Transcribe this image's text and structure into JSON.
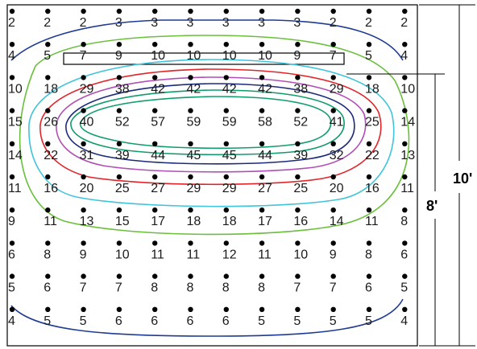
{
  "grid": {
    "rows": [
      [
        2,
        2,
        2,
        3,
        3,
        3,
        3,
        3,
        3,
        2,
        2,
        2
      ],
      [
        4,
        5,
        7,
        9,
        10,
        10,
        10,
        10,
        9,
        7,
        5,
        4
      ],
      [
        10,
        18,
        29,
        38,
        42,
        42,
        42,
        42,
        38,
        29,
        18,
        10
      ],
      [
        15,
        26,
        40,
        52,
        57,
        59,
        59,
        58,
        52,
        41,
        25,
        14
      ],
      [
        14,
        22,
        31,
        39,
        44,
        45,
        45,
        44,
        39,
        32,
        22,
        13
      ],
      [
        11,
        16,
        20,
        25,
        27,
        29,
        29,
        27,
        25,
        20,
        16,
        11
      ],
      [
        9,
        11,
        13,
        15,
        17,
        18,
        18,
        17,
        16,
        14,
        11,
        8
      ],
      [
        6,
        8,
        9,
        10,
        11,
        11,
        12,
        11,
        10,
        9,
        8,
        6
      ],
      [
        5,
        6,
        7,
        7,
        8,
        8,
        8,
        8,
        7,
        7,
        6,
        5
      ],
      [
        4,
        5,
        5,
        6,
        6,
        6,
        6,
        5,
        5,
        5,
        5,
        4
      ]
    ]
  },
  "dimensions": {
    "total_label": "10'",
    "mounting_label": "8'"
  },
  "contours": [
    {
      "color": "#1f3a93"
    },
    {
      "color": "#6abf3b"
    },
    {
      "color": "#3fc4dc"
    },
    {
      "color": "#e0262b"
    },
    {
      "color": "#b04fb5"
    },
    {
      "color": "#1c2a7a"
    },
    {
      "color": "#119c6e"
    },
    {
      "color": "#119c6e"
    }
  ]
}
